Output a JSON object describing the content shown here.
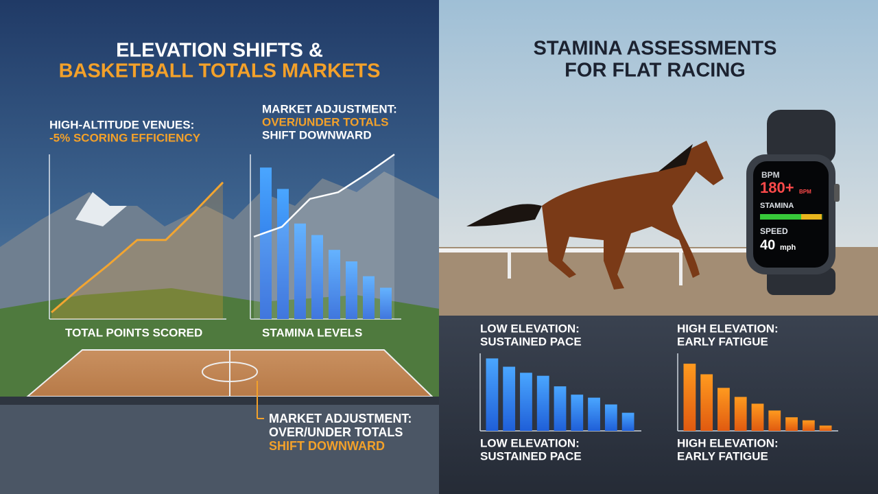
{
  "left": {
    "title": [
      "ELEVATION SHIFTS &",
      "BASKETBALL TOTALS MARKETS"
    ],
    "venues": {
      "label": "HIGH-ALTITUDE VENUES:",
      "effect": "-5% SCORING EFFICIENCY"
    },
    "market_top": [
      "MARKET ADJUSTMENT:",
      "OVER/UNDER TOTALS",
      "SHIFT DOWNWARD"
    ],
    "points_chart": {
      "label": "TOTAL POINTS SCORED",
      "values": [
        4,
        19,
        33,
        48,
        48,
        65,
        83
      ]
    },
    "stamina_chart": {
      "label": "STAMINA LEVELS",
      "values": [
        92,
        79,
        58,
        51,
        42,
        35,
        26,
        19
      ],
      "trend": [
        50,
        56,
        73,
        77,
        88,
        100
      ]
    },
    "market_bottom": [
      "MARKET ADJUSTMENT:",
      "OVER/UNDER TOTALS",
      "SHIFT DOWNWARD"
    ]
  },
  "right": {
    "title": [
      "STAMINA ASSESSMENTS",
      "FOR FLAT RACING"
    ],
    "watch": {
      "bpm_label": "BPM",
      "bpm_value": "180+",
      "bpm_unit": "BPM",
      "stamina_label": "STAMINA",
      "speed_label": "SPEED",
      "speed_value": "40",
      "speed_unit": "mph"
    },
    "low": {
      "label": [
        "LOW ELEVATION:",
        "SUSTAINED PACE"
      ],
      "values": [
        96,
        85,
        77,
        73,
        59,
        48,
        44,
        35,
        24
      ]
    },
    "high": {
      "label": [
        "HIGH ELEVATION:",
        "EARLY FATIGUE"
      ],
      "values": [
        89,
        75,
        57,
        45,
        36,
        27,
        18,
        14,
        7
      ]
    },
    "low_caption": [
      "LOW ELEVATION:",
      "SUSTAINED PACE"
    ],
    "high_caption": [
      "HIGH ELEVATION:",
      "EARLY FATIGUE"
    ]
  }
}
